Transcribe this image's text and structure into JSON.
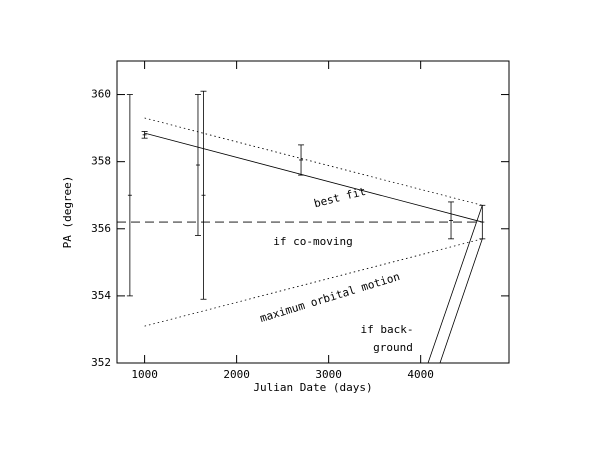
{
  "chart_data": {
    "type": "errorbar",
    "xlabel": "Julian Date (days)",
    "ylabel": "PA (degree)",
    "xlim": [
      700,
      4960
    ],
    "ylim": [
      352,
      361
    ],
    "xticks": [
      1000,
      2000,
      3000,
      4000
    ],
    "yticks": [
      352,
      354,
      356,
      358,
      360
    ],
    "color": "#000000",
    "x": [
      840,
      1000,
      1580,
      1640,
      2700,
      4330,
      4670
    ],
    "values": [
      357,
      358.8,
      357.9,
      357,
      358.05,
      356.25,
      356.2
    ],
    "errors": [
      3,
      0.1,
      2.1,
      3.1,
      0.45,
      0.55,
      0.5
    ],
    "lines": [
      {
        "x": [
          1000,
          4670
        ],
        "values": [
          358.85,
          356.2
        ],
        "style": "solid"
      },
      {
        "x": [
          1000,
          4670
        ],
        "values": [
          359.3,
          356.7
        ],
        "style": "dotted"
      },
      {
        "x": [
          700,
          4670
        ],
        "values": [
          356.2,
          356.2
        ],
        "style": "dashed"
      },
      {
        "x": [
          1000,
          4670
        ],
        "values": [
          353.1,
          355.7
        ],
        "style": "dotted"
      },
      {
        "x": [
          4670,
          4080
        ],
        "values": [
          356.7,
          352
        ],
        "style": "solid"
      },
      {
        "x": [
          4670,
          4210
        ],
        "values": [
          355.7,
          352
        ],
        "style": "solid"
      }
    ],
    "annotations": [
      "best fit",
      "if co-moving",
      "maximum orbital motion",
      "if back-",
      "ground"
    ]
  }
}
